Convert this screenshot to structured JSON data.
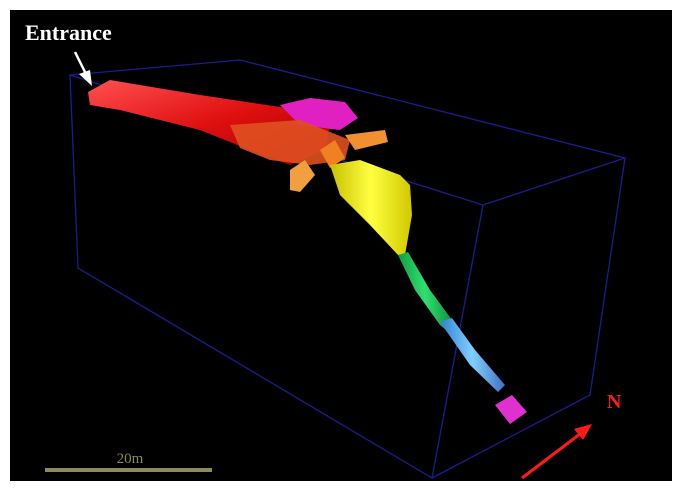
{
  "annotations": {
    "entrance": "Entrance",
    "scale_bar": "20m",
    "north": "N"
  }
}
